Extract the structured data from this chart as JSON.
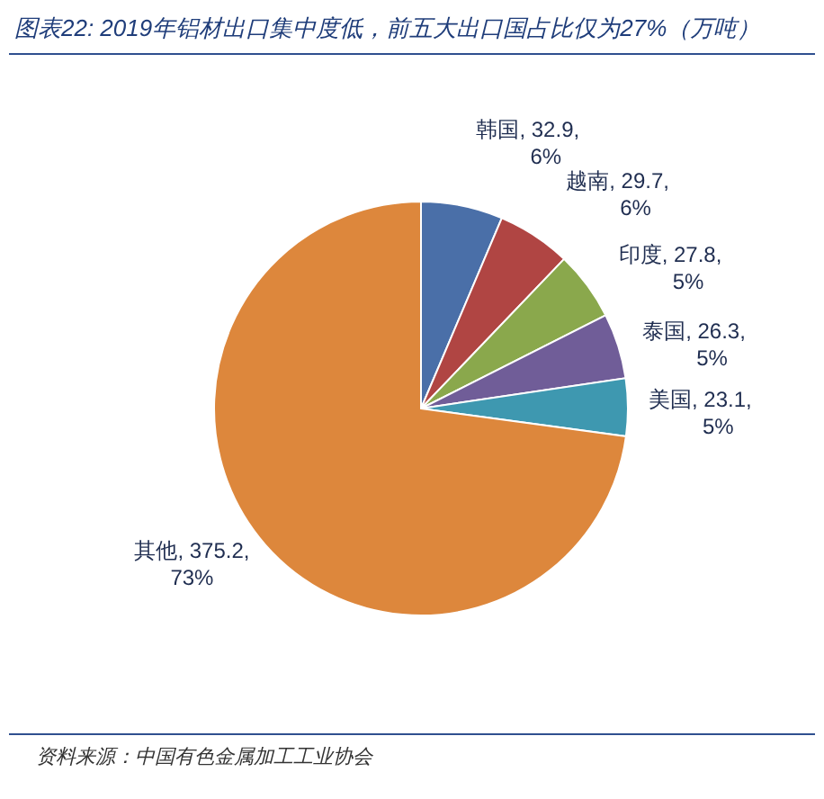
{
  "chart_data": {
    "type": "pie",
    "title": "图表22: 2019年铝材出口集中度低，前五大出口国占比仅为27%（万吨）",
    "categories": [
      "韩国",
      "越南",
      "印度",
      "泰国",
      "美国",
      "其他"
    ],
    "values": [
      32.9,
      29.7,
      27.8,
      26.3,
      23.1,
      375.2
    ],
    "value_labels": [
      "32.9, 6%",
      "29.7, 6%",
      "27.8, 5%",
      "26.3, 5%",
      "23.1, 5%",
      "375.2, 73%"
    ],
    "colors": [
      "#4a6fa8",
      "#b04543",
      "#8aa84c",
      "#705d98",
      "#3e98b0",
      "#dd873c"
    ],
    "annotations": [
      "资料来源：中国有色金属加工工业协会"
    ]
  }
}
